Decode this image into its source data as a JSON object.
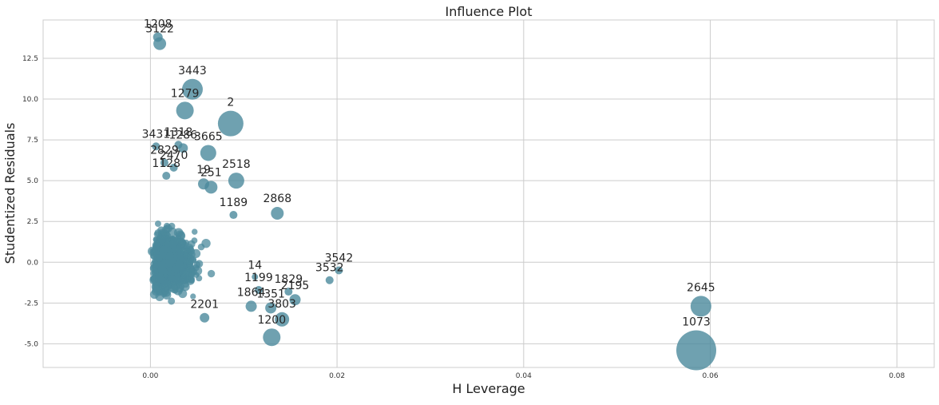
{
  "chart_data": {
    "type": "scatter",
    "title": "Influence Plot",
    "xlabel": "H Leverage",
    "ylabel": "Studentized Residuals",
    "xlim": [
      -0.0115,
      0.084
    ],
    "ylim": [
      -6.45,
      14.85
    ],
    "xticks": [
      0.0,
      0.02,
      0.04,
      0.06,
      0.08
    ],
    "xtick_labels": [
      "0.00",
      "0.02",
      "0.04",
      "0.06",
      "0.08"
    ],
    "yticks": [
      -5.0,
      -2.5,
      0.0,
      2.5,
      5.0,
      7.5,
      10.0,
      12.5
    ],
    "ytick_labels": [
      "-5.0",
      "-2.5",
      "0.0",
      "2.5",
      "5.0",
      "7.5",
      "10.0",
      "12.5"
    ],
    "grid": true,
    "point_color": "#4b8a9c",
    "background": "#ffffff",
    "grid_color": "#cccccc",
    "points": [
      {
        "label": "1208",
        "x": 0.0008,
        "y": 13.8,
        "s": 6
      },
      {
        "label": "3122",
        "x": 0.001,
        "y": 13.4,
        "s": 8
      },
      {
        "label": "3443",
        "x": 0.0045,
        "y": 10.6,
        "s": 13
      },
      {
        "label": "1279",
        "x": 0.0037,
        "y": 9.3,
        "s": 11
      },
      {
        "label": "2",
        "x": 0.0086,
        "y": 8.5,
        "s": 16
      },
      {
        "label": "3431",
        "x": 0.0006,
        "y": 7.1,
        "s": 5
      },
      {
        "label": "1318",
        "x": 0.003,
        "y": 7.2,
        "s": 5
      },
      {
        "label": "1286",
        "x": 0.0035,
        "y": 7.0,
        "s": 6
      },
      {
        "label": "3665",
        "x": 0.0062,
        "y": 6.7,
        "s": 10
      },
      {
        "label": "2829",
        "x": 0.0015,
        "y": 6.1,
        "s": 5
      },
      {
        "label": "2470",
        "x": 0.0025,
        "y": 5.8,
        "s": 5
      },
      {
        "label": "1128",
        "x": 0.0017,
        "y": 5.3,
        "s": 5
      },
      {
        "label": "19",
        "x": 0.0057,
        "y": 4.8,
        "s": 7
      },
      {
        "label": "251",
        "x": 0.0065,
        "y": 4.6,
        "s": 8
      },
      {
        "label": "2518",
        "x": 0.0092,
        "y": 5.0,
        "s": 10
      },
      {
        "label": "1189",
        "x": 0.0089,
        "y": 2.9,
        "s": 5
      },
      {
        "label": "2868",
        "x": 0.0136,
        "y": 3.0,
        "s": 8
      },
      {
        "label": "1199",
        "x": 0.0116,
        "y": -1.7,
        "s": 5
      },
      {
        "label": "1829",
        "x": 0.0148,
        "y": -1.8,
        "s": 5
      },
      {
        "label": "2195",
        "x": 0.0155,
        "y": -2.3,
        "s": 7
      },
      {
        "label": "1864",
        "x": 0.0108,
        "y": -2.7,
        "s": 7
      },
      {
        "label": "1351",
        "x": 0.0129,
        "y": -2.8,
        "s": 7
      },
      {
        "label": "3803",
        "x": 0.0141,
        "y": -3.5,
        "s": 9
      },
      {
        "label": "1200",
        "x": 0.013,
        "y": -4.6,
        "s": 11
      },
      {
        "label": "3532",
        "x": 0.0192,
        "y": -1.1,
        "s": 5
      },
      {
        "label": "3542",
        "x": 0.0202,
        "y": -0.5,
        "s": 5
      },
      {
        "label": "2645",
        "x": 0.059,
        "y": -2.7,
        "s": 13
      },
      {
        "label": "1073",
        "x": 0.0585,
        "y": -5.4,
        "s": 25
      },
      {
        "label": "2201",
        "x": 0.0058,
        "y": -3.4,
        "s": 6
      },
      {
        "label": "14",
        "x": 0.0112,
        "y": -0.9,
        "s": 4
      }
    ]
  }
}
